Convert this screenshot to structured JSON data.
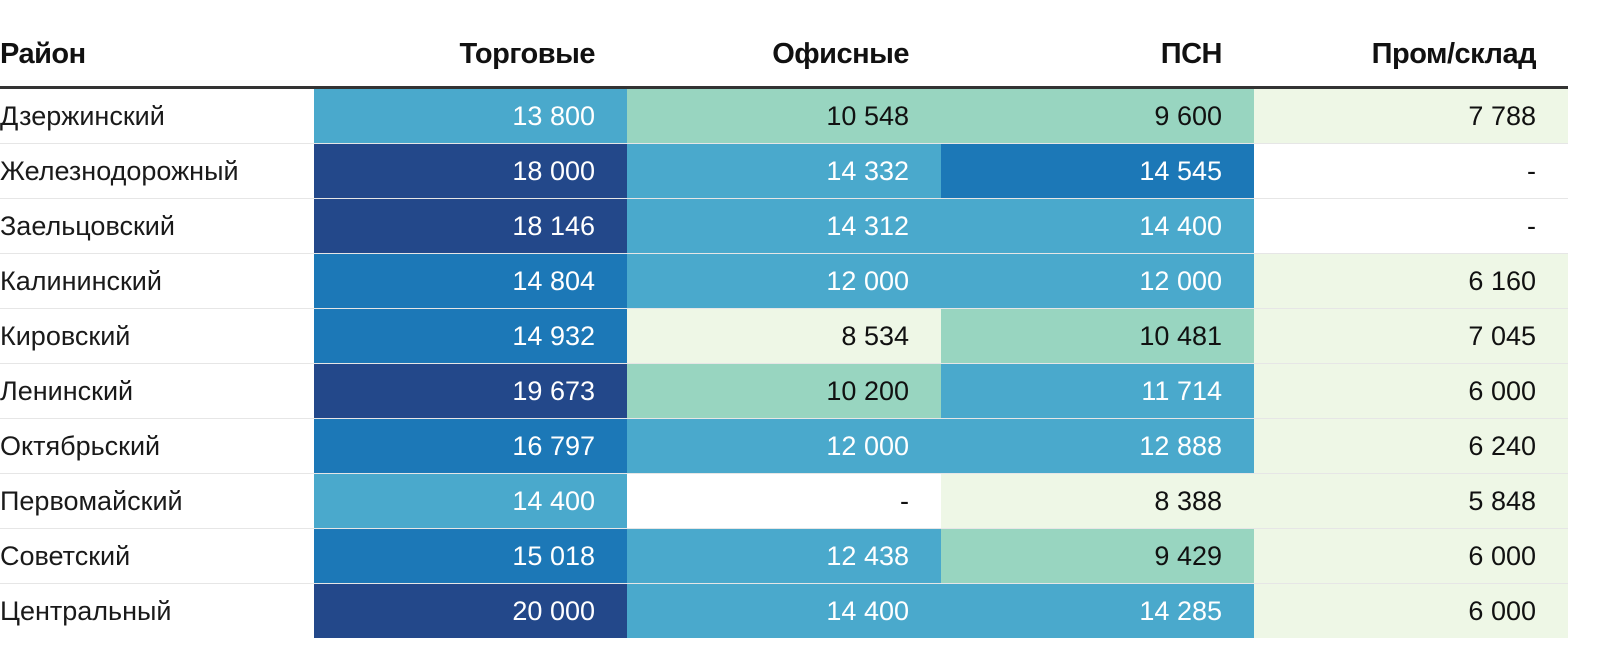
{
  "chart_data": {
    "type": "table",
    "columns": [
      "Район",
      "Торговые",
      "Офисные",
      "ПСН",
      "Пром/склад"
    ],
    "rows": [
      {
        "district": "Дзержинский",
        "values": [
          "13 800",
          "10 548",
          "9 600",
          "7 788"
        ]
      },
      {
        "district": "Железнодорожный",
        "values": [
          "18 000",
          "14 332",
          "14 545",
          "-"
        ]
      },
      {
        "district": "Заельцовский",
        "values": [
          "18 146",
          "14 312",
          "14 400",
          "-"
        ]
      },
      {
        "district": "Калининский",
        "values": [
          "14 804",
          "12 000",
          "12 000",
          "6 160"
        ]
      },
      {
        "district": "Кировский",
        "values": [
          "14 932",
          "8 534",
          "10 481",
          "7 045"
        ]
      },
      {
        "district": "Ленинский",
        "values": [
          "19 673",
          "10 200",
          "11 714",
          "6 000"
        ]
      },
      {
        "district": "Октябрьский",
        "values": [
          "16 797",
          "12 000",
          "12 888",
          "6 240"
        ]
      },
      {
        "district": "Первомайский",
        "values": [
          "14 400",
          "-",
          "8 388",
          "5 848"
        ]
      },
      {
        "district": "Советский",
        "values": [
          "15 018",
          "12 438",
          "9 429",
          "6 000"
        ]
      },
      {
        "district": "Центральный",
        "values": [
          "20 000",
          "14 400",
          "14 285",
          "6 000"
        ]
      }
    ],
    "color_scale": [
      {
        "max": 9000,
        "bg": "#eef7e6",
        "fg": "#111111"
      },
      {
        "max": 11000,
        "bg": "#98d5c0",
        "fg": "#111111"
      },
      {
        "max": 14400,
        "bg": "#4aa9cc",
        "fg": "#ffffff"
      },
      {
        "max": 17500,
        "bg": "#1c78b7",
        "fg": "#ffffff"
      },
      {
        "max": 1000000,
        "bg": "#23488a",
        "fg": "#ffffff"
      }
    ],
    "missing_color": {
      "bg": "#ffffff",
      "fg": "#111111"
    }
  }
}
